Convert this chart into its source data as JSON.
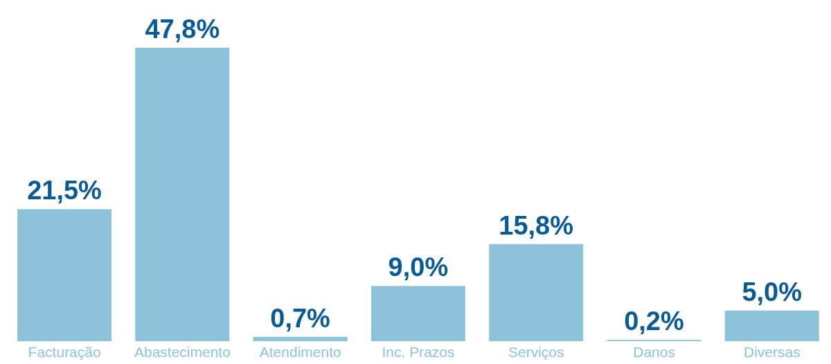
{
  "chart_data": {
    "type": "bar",
    "categories": [
      "Facturação",
      "Abastecimento",
      "Atendimento",
      "Inc. Prazos",
      "Serviços",
      "Danos",
      "Diversas"
    ],
    "values": [
      21.5,
      47.8,
      0.7,
      9.0,
      15.8,
      0.2,
      5.0
    ],
    "value_labels": [
      "21,5%",
      "47,8%",
      "0,7%",
      "9,0%",
      "15,8%",
      "0,2%",
      "5,0%"
    ],
    "color": "#8dc3da",
    "grid": false,
    "legend": false
  }
}
